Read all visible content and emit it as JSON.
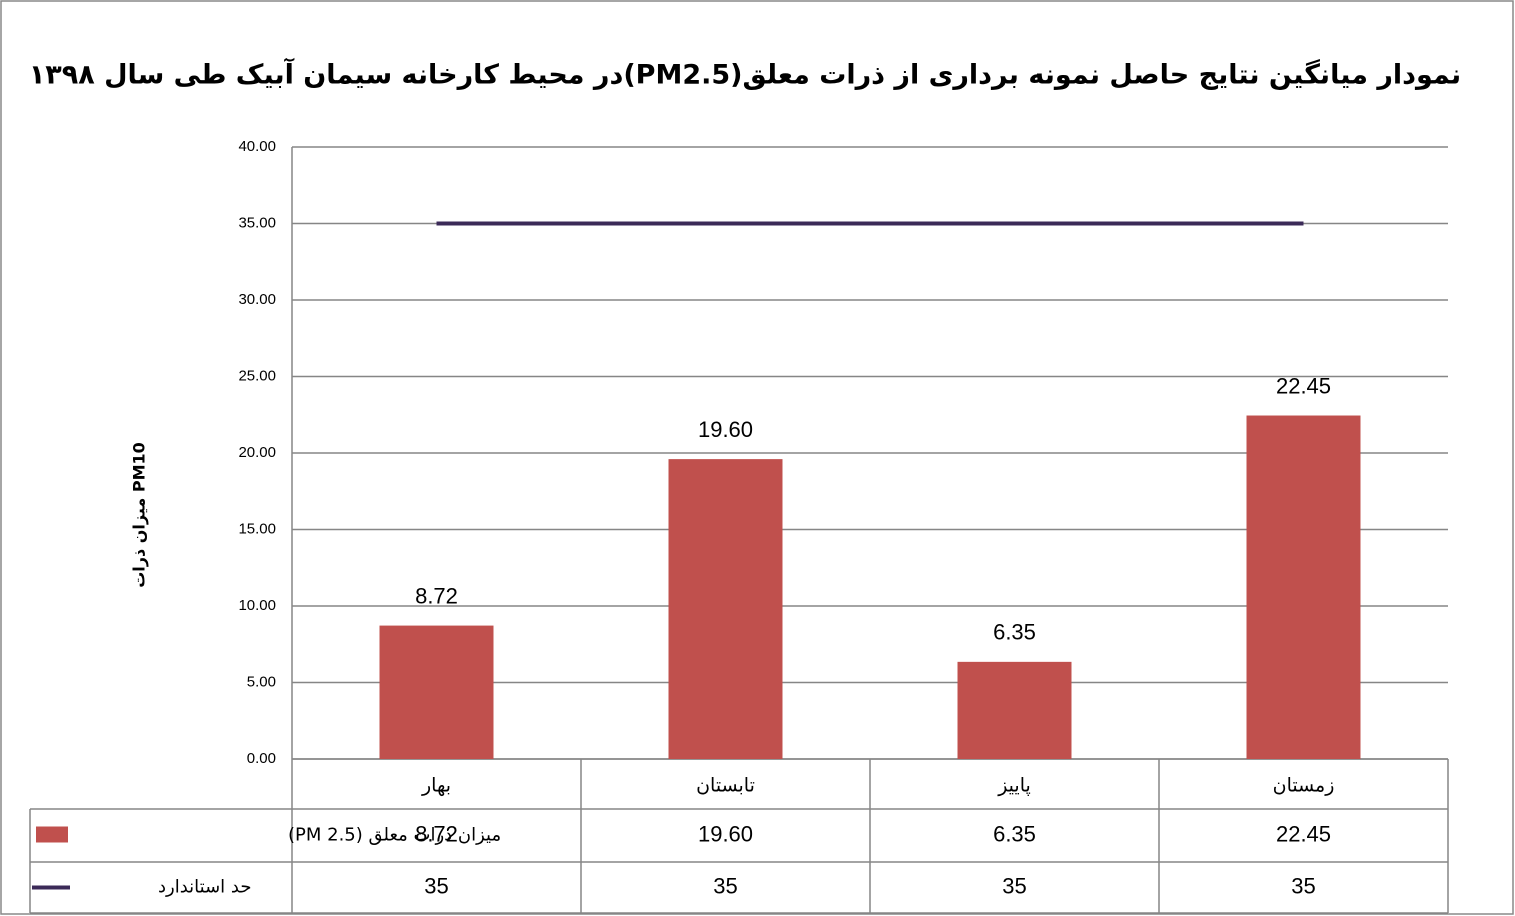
{
  "chart_data": {
    "type": "bar",
    "title": "نمودار میانگین نتایج حاصل نمونه برداری از ذرات معلق(PM2.5)در محیط کارخانه سیمان آبیک طی سال ۱۳۹۸",
    "y_label": "میزان ذرات PM10",
    "categories": [
      "بهار",
      "تابستان",
      "پاییز",
      "زمستان"
    ],
    "series": [
      {
        "name": "میزان ذرات معلق (PM 2.5)",
        "type": "bar",
        "color": "#c0504d",
        "values": [
          8.72,
          19.6,
          6.35,
          22.45
        ],
        "value_labels": [
          "8.72",
          "19.60",
          "6.35",
          "22.45"
        ]
      },
      {
        "name": "حد استاندارد",
        "type": "line",
        "color": "#3b2a58",
        "values": [
          35,
          35,
          35,
          35
        ]
      }
    ],
    "ylim": [
      0,
      40
    ],
    "yticks": [
      {
        "value": 0,
        "label": "0.00"
      },
      {
        "value": 5,
        "label": "5.00"
      },
      {
        "value": 10,
        "label": "10.00"
      },
      {
        "value": 15,
        "label": "15.00"
      },
      {
        "value": 20,
        "label": "20.00"
      },
      {
        "value": 25,
        "label": "25.00"
      },
      {
        "value": 30,
        "label": "30.00"
      },
      {
        "value": 35,
        "label": "35.00"
      },
      {
        "value": 40,
        "label": "40.00"
      }
    ],
    "grid": true,
    "data_table": true
  }
}
